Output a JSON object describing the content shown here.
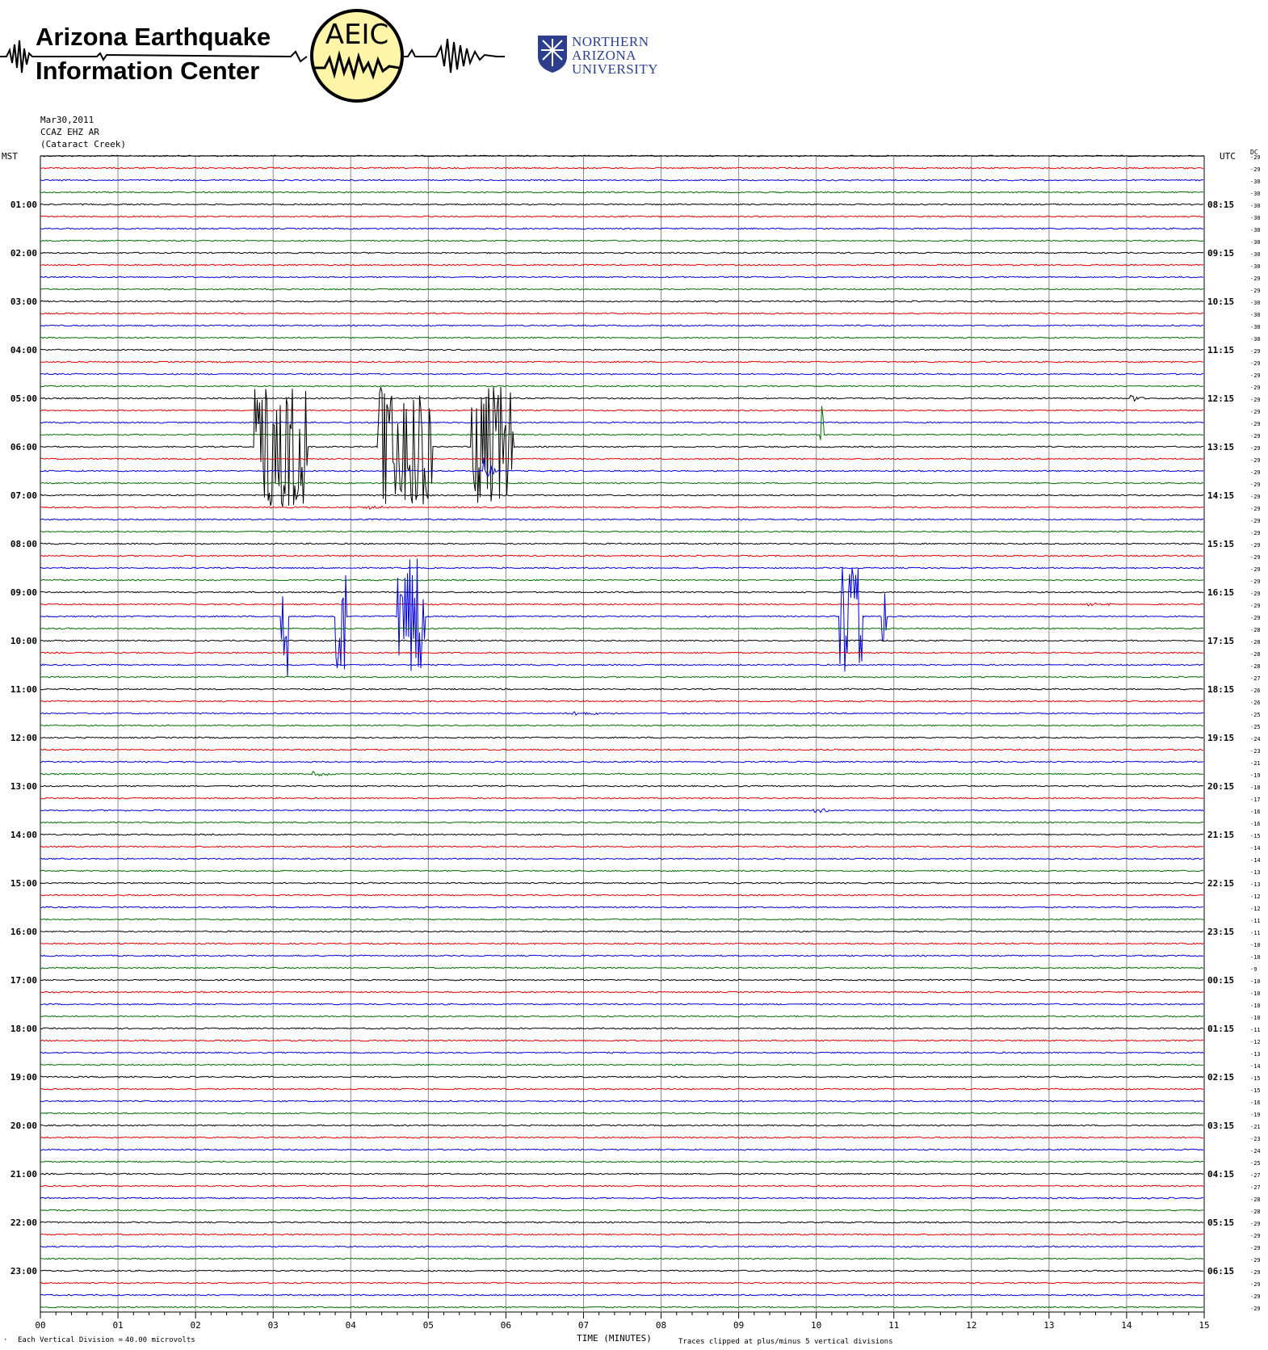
{
  "header": {
    "org_line1": "Arizona Earthquake",
    "org_line2": "Information Center",
    "aeic_logo_text": "AEIC",
    "nau_line1": "NORTHERN",
    "nau_line2": "ARIZONA",
    "nau_line3": "UNIVERSITY"
  },
  "station": {
    "date": "Mar30,2011",
    "code": "CCAZ EHZ AR",
    "location": "(Cataract Creek)"
  },
  "chart_data": {
    "type": "line",
    "title": "",
    "left_axis_label": "MST",
    "right_axis_label": "UTC",
    "dc_label": "DC",
    "xlabel": "TIME (MINUTES)",
    "xlim": [
      0,
      15
    ],
    "x_ticks": [
      "00",
      "01",
      "02",
      "03",
      "04",
      "05",
      "06",
      "07",
      "08",
      "09",
      "10",
      "11",
      "12",
      "13",
      "14",
      "15"
    ],
    "trace_interval_minutes": 15,
    "trace_count": 96,
    "trace_colors": [
      "#000000",
      "#e00000",
      "#0000dd",
      "#007000"
    ],
    "mst_hour_labels": [
      "01:00",
      "02:00",
      "03:00",
      "04:00",
      "05:00",
      "06:00",
      "07:00",
      "08:00",
      "09:00",
      "10:00",
      "11:00",
      "12:00",
      "13:00",
      "14:00",
      "15:00",
      "16:00",
      "17:00",
      "18:00",
      "19:00",
      "20:00",
      "21:00",
      "22:00",
      "23:00"
    ],
    "utc_hour_labels": [
      "08:15",
      "09:15",
      "10:15",
      "11:15",
      "12:15",
      "13:15",
      "14:15",
      "15:15",
      "16:15",
      "17:15",
      "18:15",
      "19:15",
      "20:15",
      "21:15",
      "22:15",
      "23:15",
      "00:15",
      "01:15",
      "02:15",
      "03:15",
      "04:15",
      "05:15",
      "06:15"
    ],
    "dc_offsets": [
      -29,
      -29,
      -30,
      -30,
      -30,
      -30,
      -30,
      -30,
      -30,
      -30,
      -29,
      -29,
      -30,
      -30,
      -30,
      -30,
      -29,
      -29,
      -29,
      -29,
      -29,
      -29,
      -29,
      -29,
      -29,
      -29,
      -29,
      -29,
      -29,
      -29,
      -29,
      -29,
      -29,
      -29,
      -29,
      -29,
      -29,
      -29,
      -29,
      -28,
      -28,
      -28,
      -28,
      -27,
      -26,
      -26,
      -25,
      -25,
      -24,
      -23,
      -21,
      -19,
      -18,
      -17,
      -16,
      -16,
      -15,
      -14,
      -14,
      -13,
      -13,
      -12,
      -12,
      -11,
      -11,
      -10,
      -10,
      -9,
      -10,
      -10,
      -10,
      -10,
      -11,
      -12,
      -13,
      -14,
      -15,
      -15,
      -16,
      -19,
      -21,
      -23,
      -24,
      -25,
      -27,
      -27,
      -28,
      -28,
      -29,
      -29,
      -29,
      -29,
      -29,
      -29,
      -29,
      -29
    ],
    "events": [
      {
        "trace": 20,
        "start": 14.05,
        "end": 14.4,
        "amp": 0.4,
        "kind": "quake"
      },
      {
        "trace": 23,
        "start": 10.05,
        "end": 10.1,
        "amp": 4.5,
        "kind": "spike"
      },
      {
        "trace": 24,
        "start": 2.75,
        "end": 3.45,
        "amp": 5.0,
        "kind": "clipped"
      },
      {
        "trace": 24,
        "start": 4.35,
        "end": 5.05,
        "amp": 5.0,
        "kind": "clipped"
      },
      {
        "trace": 24,
        "start": 5.55,
        "end": 6.1,
        "amp": 5.0,
        "kind": "clipped"
      },
      {
        "trace": 26,
        "start": 5.7,
        "end": 6.0,
        "amp": 1.5,
        "kind": "quake"
      },
      {
        "trace": 29,
        "start": 4.2,
        "end": 5.1,
        "amp": 0.25,
        "kind": "quake"
      },
      {
        "trace": 37,
        "start": 13.5,
        "end": 14.3,
        "amp": 0.25,
        "kind": "quake"
      },
      {
        "trace": 38,
        "start": 3.1,
        "end": 3.2,
        "amp": 5.0,
        "kind": "clipped"
      },
      {
        "trace": 38,
        "start": 3.8,
        "end": 3.95,
        "amp": 5.0,
        "kind": "clipped"
      },
      {
        "trace": 38,
        "start": 4.6,
        "end": 4.95,
        "amp": 5.0,
        "kind": "clipped"
      },
      {
        "trace": 38,
        "start": 10.3,
        "end": 10.6,
        "amp": 5.0,
        "kind": "clipped"
      },
      {
        "trace": 38,
        "start": 10.85,
        "end": 10.9,
        "amp": 3.0,
        "kind": "clipped"
      },
      {
        "trace": 46,
        "start": 6.85,
        "end": 8.0,
        "amp": 0.3,
        "kind": "quake"
      },
      {
        "trace": 51,
        "start": 3.5,
        "end": 4.0,
        "amp": 0.45,
        "kind": "quake"
      },
      {
        "trace": 54,
        "start": 9.95,
        "end": 10.9,
        "amp": 0.3,
        "kind": "quake"
      },
      {
        "trace": 81,
        "start": 4.85,
        "end": 4.9,
        "amp": 0.3,
        "kind": "spike"
      },
      {
        "trace": 82,
        "start": 13.8,
        "end": 14.0,
        "amp": 0.15,
        "kind": "quake"
      }
    ]
  },
  "footer": {
    "vertical_division": "Each Vertical Division =",
    "microvolts": "40.00 microvolts",
    "clipping_note": "Traces clipped at plus/minus 5 vertical divisions"
  }
}
